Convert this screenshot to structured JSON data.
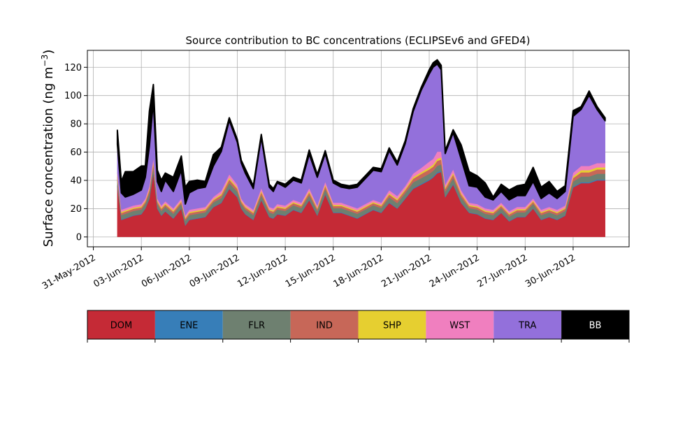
{
  "chart_data": {
    "type": "area",
    "title": "Source contribution to BC concentrations (ECLIPSEv6 and GFED4)",
    "ylabel": "Surface concentration (ng m",
    "ylabel_unit_exponent": "−3",
    "ylabel_suffix": ")",
    "xlabel": "",
    "x_type": "date",
    "xlim": [
      "2012-05-30T15:00",
      "2012-07-03T12:00"
    ],
    "ylim": [
      -7,
      132
    ],
    "y_ticks": [
      0,
      20,
      40,
      60,
      80,
      100,
      120
    ],
    "x_tick_labels": [
      "31-May-2012",
      "03-Jun-2012",
      "06-Jun-2012",
      "09-Jun-2012",
      "12-Jun-2012",
      "15-Jun-2012",
      "18-Jun-2012",
      "21-Jun-2012",
      "24-Jun-2012",
      "27-Jun-2012",
      "30-Jun-2012"
    ],
    "x_tick_dates": [
      "2012-05-31",
      "2012-06-03",
      "2012-06-06",
      "2012-06-09",
      "2012-06-12",
      "2012-06-15",
      "2012-06-18",
      "2012-06-21",
      "2012-06-24",
      "2012-06-27",
      "2012-06-30"
    ],
    "grid": true,
    "legend_placement": "below",
    "x": [
      "2012-06-01T12:00",
      "2012-06-01T18:00",
      "2012-06-02T00:00",
      "2012-06-02T12:00",
      "2012-06-03T00:00",
      "2012-06-03T06:00",
      "2012-06-03T12:00",
      "2012-06-03T18:00",
      "2012-06-04T00:00",
      "2012-06-04T06:00",
      "2012-06-04T12:00",
      "2012-06-05T00:00",
      "2012-06-05T12:00",
      "2012-06-05T18:00",
      "2012-06-06T00:00",
      "2012-06-06T12:00",
      "2012-06-07T00:00",
      "2012-06-07T12:00",
      "2012-06-08T00:00",
      "2012-06-08T12:00",
      "2012-06-09T00:00",
      "2012-06-09T06:00",
      "2012-06-09T12:00",
      "2012-06-10T00:00",
      "2012-06-10T12:00",
      "2012-06-11T00:00",
      "2012-06-11T06:00",
      "2012-06-11T12:00",
      "2012-06-12T00:00",
      "2012-06-12T12:00",
      "2012-06-13T00:00",
      "2012-06-13T12:00",
      "2012-06-14T00:00",
      "2012-06-14T12:00",
      "2012-06-15T00:00",
      "2012-06-15T12:00",
      "2012-06-16T00:00",
      "2012-06-16T12:00",
      "2012-06-17T00:00",
      "2012-06-17T12:00",
      "2012-06-18T00:00",
      "2012-06-18T12:00",
      "2012-06-19T00:00",
      "2012-06-19T12:00",
      "2012-06-20T00:00",
      "2012-06-20T12:00",
      "2012-06-21T00:00",
      "2012-06-21T06:00",
      "2012-06-21T12:00",
      "2012-06-21T18:00",
      "2012-06-22T00:00",
      "2012-06-22T12:00",
      "2012-06-23T00:00",
      "2012-06-23T12:00",
      "2012-06-24T00:00",
      "2012-06-24T12:00",
      "2012-06-25T00:00",
      "2012-06-25T12:00",
      "2012-06-26T00:00",
      "2012-06-26T12:00",
      "2012-06-27T00:00",
      "2012-06-27T12:00",
      "2012-06-28T00:00",
      "2012-06-28T12:00",
      "2012-06-29T00:00",
      "2012-06-29T12:00",
      "2012-06-30T00:00",
      "2012-06-30T12:00",
      "2012-07-01T00:00",
      "2012-07-01T12:00",
      "2012-07-02T00:00"
    ],
    "series": [
      {
        "name": "DOM",
        "color": "#c52a36",
        "values": [
          36,
          12,
          13,
          15,
          16,
          20,
          27,
          45,
          20,
          15,
          18,
          13,
          20,
          8,
          12,
          13,
          14,
          21,
          24,
          34,
          28,
          20,
          16,
          12,
          26,
          14,
          13,
          16,
          15,
          19,
          17,
          26,
          15,
          30,
          17,
          17,
          15,
          13,
          16,
          19,
          17,
          24,
          20,
          27,
          34,
          37,
          40,
          42,
          45,
          46,
          28,
          37,
          24,
          17,
          16,
          13,
          12,
          17,
          11,
          14,
          14,
          20,
          12,
          14,
          12,
          15,
          35,
          38,
          38,
          40,
          40
        ]
      },
      {
        "name": "ENE",
        "color": "#377eb8",
        "values": [
          0.5,
          0.4,
          0.4,
          0.4,
          0.4,
          0.4,
          0.5,
          0.6,
          0.4,
          0.4,
          0.4,
          0.4,
          0.4,
          0.4,
          0.4,
          0.4,
          0.4,
          0.4,
          0.5,
          0.6,
          0.5,
          0.4,
          0.4,
          0.4,
          0.5,
          0.4,
          0.4,
          0.4,
          0.4,
          0.4,
          0.4,
          0.5,
          0.4,
          0.5,
          0.4,
          0.4,
          0.4,
          0.4,
          0.4,
          0.4,
          0.4,
          0.5,
          0.4,
          0.5,
          0.6,
          0.6,
          0.7,
          0.7,
          0.8,
          0.8,
          0.5,
          0.6,
          0.5,
          0.4,
          0.4,
          0.4,
          0.4,
          0.4,
          0.4,
          0.4,
          0.4,
          0.4,
          0.4,
          0.4,
          0.4,
          0.4,
          0.6,
          0.7,
          0.7,
          0.7,
          0.7
        ]
      },
      {
        "name": "FLR",
        "color": "#6e8070",
        "values": [
          4,
          3,
          3,
          3,
          3,
          3,
          3.5,
          4,
          3,
          3,
          3,
          3,
          3,
          3,
          3,
          3,
          3,
          3,
          3,
          3.5,
          3.5,
          3,
          3,
          3,
          3,
          3,
          3,
          3,
          3,
          3,
          3,
          3,
          3,
          3.5,
          3,
          3,
          3,
          3,
          3,
          3,
          3,
          3.5,
          3.5,
          3.5,
          4,
          4,
          4,
          4,
          4.5,
          4.5,
          3.5,
          4,
          3.5,
          3,
          3,
          3,
          3,
          3,
          3,
          3,
          3,
          3,
          3,
          3,
          3,
          3,
          3.5,
          4,
          4,
          4,
          4
        ]
      },
      {
        "name": "IND",
        "color": "#c76758",
        "values": [
          2,
          1.5,
          1.5,
          1.5,
          1.5,
          1.5,
          2,
          2.5,
          1.5,
          1.5,
          1.5,
          1.5,
          1.5,
          1.5,
          1.5,
          1.5,
          1.5,
          1.5,
          2,
          2.5,
          2,
          1.5,
          1.5,
          1.5,
          2,
          1.5,
          1.5,
          1.5,
          1.5,
          1.5,
          1.5,
          2,
          1.5,
          2,
          1.5,
          1.5,
          1.5,
          1.5,
          1.5,
          1.5,
          1.5,
          2,
          2,
          2,
          2.5,
          3,
          3,
          3,
          3.5,
          3.5,
          2,
          2.5,
          2,
          1.5,
          1.5,
          1.5,
          1.5,
          1.5,
          1.5,
          1.5,
          1.5,
          1.5,
          1.5,
          1.5,
          1.5,
          1.5,
          2.5,
          3,
          3,
          3,
          3
        ]
      },
      {
        "name": "SHP",
        "color": "#e6cf30",
        "values": [
          1,
          0.8,
          0.8,
          0.8,
          0.8,
          0.8,
          1,
          1.2,
          0.8,
          0.8,
          0.8,
          0.8,
          0.8,
          0.8,
          0.8,
          0.8,
          0.8,
          0.8,
          1,
          1.2,
          1,
          0.8,
          0.8,
          0.8,
          1,
          0.8,
          0.8,
          0.8,
          0.8,
          0.8,
          0.8,
          1,
          0.8,
          1,
          0.8,
          0.8,
          0.8,
          0.8,
          0.8,
          0.8,
          0.8,
          1,
          1,
          1,
          1.2,
          1.2,
          1.5,
          1.5,
          1.5,
          1.5,
          1,
          1.2,
          1,
          0.8,
          0.8,
          0.8,
          0.8,
          0.8,
          0.8,
          0.8,
          0.8,
          0.8,
          0.8,
          0.8,
          0.8,
          0.8,
          1.2,
          1.5,
          1.5,
          1.5,
          1.5
        ]
      },
      {
        "name": "WST",
        "color": "#f07fbf",
        "values": [
          2,
          1.5,
          1.5,
          1.5,
          1.5,
          1.5,
          2,
          2.5,
          1.5,
          1.5,
          1.5,
          1.5,
          1.5,
          1.5,
          1.5,
          1.5,
          1.5,
          1.5,
          2,
          2.5,
          2,
          1.5,
          1.5,
          1.5,
          2,
          1.5,
          1.5,
          1.5,
          1.5,
          1.5,
          1.5,
          2,
          1.5,
          2,
          1.5,
          1.5,
          1.5,
          1.5,
          1.5,
          1.5,
          1.5,
          2,
          2,
          2,
          2.5,
          3,
          4,
          4,
          5,
          4,
          2,
          2.5,
          2,
          1.5,
          1.5,
          1.5,
          1.5,
          1.5,
          1.5,
          1.5,
          1.5,
          1.5,
          1.5,
          1.5,
          1.5,
          1.5,
          2.5,
          3,
          3,
          3,
          3
        ]
      },
      {
        "name": "TRA",
        "color": "#9370db",
        "values": [
          20,
          12,
          8,
          8,
          10,
          15,
          28,
          40,
          12,
          10,
          15,
          12,
          20,
          8,
          12,
          14,
          14,
          22,
          28,
          38,
          30,
          25,
          22,
          15,
          36,
          14,
          12,
          15,
          13,
          14,
          14,
          24,
          20,
          20,
          14,
          11,
          12,
          15,
          18,
          21,
          22,
          28,
          22,
          30,
          44,
          55,
          62,
          65,
          62,
          58,
          22,
          26,
          22,
          12,
          12,
          8,
          7,
          8,
          8,
          8,
          8,
          12,
          8,
          10,
          8,
          10,
          40,
          40,
          50,
          38,
          30
        ]
      },
      {
        "name": "BB",
        "color": "#000000",
        "values": [
          10,
          8,
          18,
          16,
          17,
          8,
          25,
          12,
          8,
          8,
          5,
          10,
          10,
          12,
          8,
          6,
          4,
          8,
          3,
          2,
          2,
          2,
          3,
          2,
          2,
          2,
          2,
          1,
          2,
          2,
          2,
          3,
          2,
          2,
          2,
          2,
          2,
          2,
          2,
          2,
          2,
          2,
          2,
          2,
          2,
          2,
          3,
          3,
          3,
          3,
          2,
          2,
          10,
          10,
          8,
          10,
          2,
          5,
          7,
          7,
          8,
          10,
          8,
          8,
          5,
          4,
          4,
          2,
          3,
          2,
          2
        ]
      }
    ]
  }
}
